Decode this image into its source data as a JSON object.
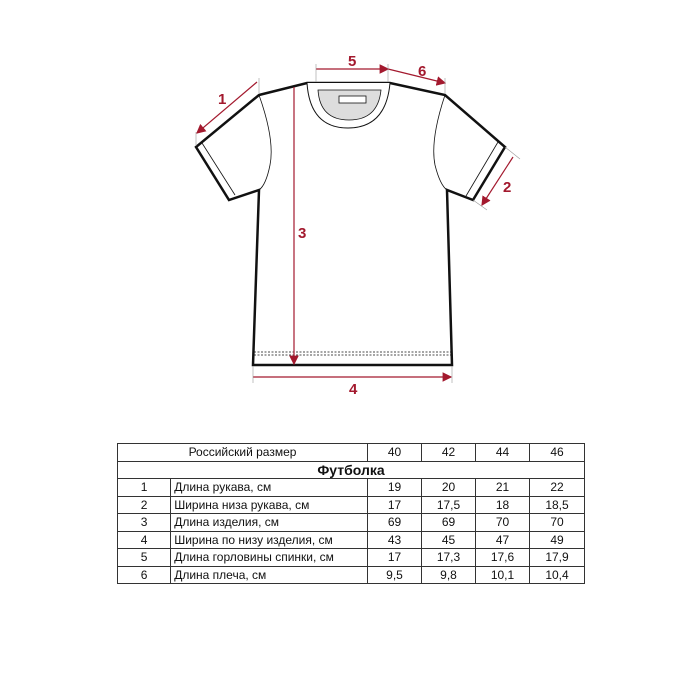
{
  "diagram": {
    "accent_color": "#a3192e",
    "measure_labels": [
      "1",
      "2",
      "3",
      "4",
      "5",
      "6"
    ]
  },
  "table": {
    "size_header": "Российский размер",
    "sizes": [
      "40",
      "42",
      "44",
      "46"
    ],
    "title": "Футболка",
    "rows": [
      {
        "num": "1",
        "name": "Длина рукава, см",
        "values": [
          "19",
          "20",
          "21",
          "22"
        ]
      },
      {
        "num": "2",
        "name": "Ширина низа рукава, см",
        "values": [
          "17",
          "17,5",
          "18",
          "18,5"
        ]
      },
      {
        "num": "3",
        "name": "Длина изделия, см",
        "values": [
          "69",
          "69",
          "70",
          "70"
        ]
      },
      {
        "num": "4",
        "name": "Ширина по низу изделия, см",
        "values": [
          "43",
          "45",
          "47",
          "49"
        ]
      },
      {
        "num": "5",
        "name": "Длина горловины спинки, см",
        "values": [
          "17",
          "17,3",
          "17,6",
          "17,9"
        ]
      },
      {
        "num": "6",
        "name": "Длина плеча, см",
        "values": [
          "9,5",
          "9,8",
          "10,1",
          "10,4"
        ]
      }
    ]
  }
}
